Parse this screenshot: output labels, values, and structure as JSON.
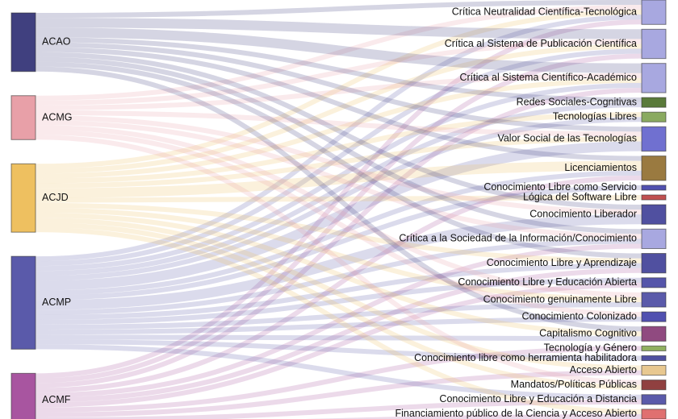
{
  "chart_data": {
    "type": "sankey",
    "nodes": [
      {
        "name": "ACAO",
        "color": "#40407f"
      },
      {
        "name": "ACMG",
        "color": "#e8a0a8"
      },
      {
        "name": "ACJD",
        "color": "#eec060"
      },
      {
        "name": "ACMP",
        "color": "#5a5aaa"
      },
      {
        "name": "ACMF",
        "color": "#a855a0"
      },
      {
        "name": "Crítica Neutralidad Científica-Tecnológica",
        "color": "#a8a8e0"
      },
      {
        "name": "Crítica al Sistema de Publicación Científica",
        "color": "#a8a8e0"
      },
      {
        "name": "Crítica al Sistema Científico-Académico",
        "color": "#a8a8e0"
      },
      {
        "name": "Redes Sociales-Cognitivas",
        "color": "#5a7a3a"
      },
      {
        "name": "Tecnologías Libres",
        "color": "#8aaa60"
      },
      {
        "name": "Valor Social de las Tecnologías",
        "color": "#7070d0"
      },
      {
        "name": "Licenciamientos",
        "color": "#9a7a40"
      },
      {
        "name": "Conocimiento Libre como Servicio",
        "color": "#5050b0"
      },
      {
        "name": "Lógica del Software Libre",
        "color": "#c05050"
      },
      {
        "name": "Conocimiento Liberador",
        "color": "#5050a0"
      },
      {
        "name": "Crítica a la Sociedad de la Información/Conocimiento",
        "color": "#a8a8e0"
      },
      {
        "name": "Conocimiento Libre y Aprendizaje",
        "color": "#5050a0"
      },
      {
        "name": "Conocimiento Libre y Educación Abierta",
        "color": "#5555aa"
      },
      {
        "name": "Conocimiento genuinamente Libre",
        "color": "#5a5aaa"
      },
      {
        "name": "Conocimiento Colonizado",
        "color": "#5050b0"
      },
      {
        "name": "Capitalismo Cognitivo",
        "color": "#904a80"
      },
      {
        "name": "Tecnología y Género",
        "color": "#90b060"
      },
      {
        "name": "Conocimiento libre como herramienta habilitadora",
        "color": "#5050a0"
      },
      {
        "name": "Acceso Abierto",
        "color": "#e8c890"
      },
      {
        "name": "Mandatos/Políticas Públicas",
        "color": "#904040"
      },
      {
        "name": "Conocimiento Libre y Educación a Distancia",
        "color": "#5a5aaa"
      },
      {
        "name": "Financiamiento público de la Ciencia y Acceso Abierto",
        "color": "#e07070"
      }
    ],
    "links": [
      {
        "source": 0,
        "target": 5,
        "value": 1
      },
      {
        "source": 1,
        "target": 5,
        "value": 1
      },
      {
        "source": 2,
        "target": 5,
        "value": 1
      },
      {
        "source": 3,
        "target": 5,
        "value": 1
      },
      {
        "source": 4,
        "target": 5,
        "value": 1
      },
      {
        "source": 0,
        "target": 6,
        "value": 2
      },
      {
        "source": 1,
        "target": 6,
        "value": 1
      },
      {
        "source": 2,
        "target": 6,
        "value": 1
      },
      {
        "source": 3,
        "target": 6,
        "value": 1
      },
      {
        "source": 4,
        "target": 6,
        "value": 1
      },
      {
        "source": 0,
        "target": 7,
        "value": 2
      },
      {
        "source": 1,
        "target": 7,
        "value": 1
      },
      {
        "source": 2,
        "target": 7,
        "value": 1
      },
      {
        "source": 3,
        "target": 7,
        "value": 1
      },
      {
        "source": 4,
        "target": 7,
        "value": 1
      },
      {
        "source": 0,
        "target": 8,
        "value": 1
      },
      {
        "source": 3,
        "target": 8,
        "value": 1
      },
      {
        "source": 2,
        "target": 9,
        "value": 1
      },
      {
        "source": 3,
        "target": 9,
        "value": 1
      },
      {
        "source": 0,
        "target": 10,
        "value": 1
      },
      {
        "source": 1,
        "target": 10,
        "value": 1
      },
      {
        "source": 2,
        "target": 10,
        "value": 1
      },
      {
        "source": 3,
        "target": 10,
        "value": 2
      },
      {
        "source": 0,
        "target": 11,
        "value": 1
      },
      {
        "source": 2,
        "target": 11,
        "value": 2
      },
      {
        "source": 3,
        "target": 11,
        "value": 1
      },
      {
        "source": 4,
        "target": 11,
        "value": 1
      },
      {
        "source": 3,
        "target": 12,
        "value": 1
      },
      {
        "source": 2,
        "target": 13,
        "value": 1
      },
      {
        "source": 0,
        "target": 14,
        "value": 1
      },
      {
        "source": 1,
        "target": 14,
        "value": 1
      },
      {
        "source": 3,
        "target": 14,
        "value": 2
      },
      {
        "source": 0,
        "target": 15,
        "value": 1
      },
      {
        "source": 1,
        "target": 15,
        "value": 1
      },
      {
        "source": 3,
        "target": 15,
        "value": 1
      },
      {
        "source": 4,
        "target": 15,
        "value": 1
      },
      {
        "source": 0,
        "target": 16,
        "value": 1
      },
      {
        "source": 2,
        "target": 16,
        "value": 1
      },
      {
        "source": 3,
        "target": 16,
        "value": 1
      },
      {
        "source": 4,
        "target": 16,
        "value": 1
      },
      {
        "source": 3,
        "target": 17,
        "value": 1
      },
      {
        "source": 4,
        "target": 17,
        "value": 1
      },
      {
        "source": 1,
        "target": 18,
        "value": 1
      },
      {
        "source": 2,
        "target": 18,
        "value": 1
      },
      {
        "source": 3,
        "target": 18,
        "value": 1
      },
      {
        "source": 1,
        "target": 19,
        "value": 1
      },
      {
        "source": 3,
        "target": 19,
        "value": 1
      },
      {
        "source": 0,
        "target": 20,
        "value": 1
      },
      {
        "source": 2,
        "target": 20,
        "value": 1
      },
      {
        "source": 3,
        "target": 20,
        "value": 1
      },
      {
        "source": 4,
        "target": 21,
        "value": 1
      },
      {
        "source": 3,
        "target": 22,
        "value": 1
      },
      {
        "source": 2,
        "target": 23,
        "value": 1
      },
      {
        "source": 4,
        "target": 23,
        "value": 1
      },
      {
        "source": 1,
        "target": 24,
        "value": 1
      },
      {
        "source": 2,
        "target": 24,
        "value": 1
      },
      {
        "source": 3,
        "target": 25,
        "value": 1
      },
      {
        "source": 4,
        "target": 25,
        "value": 1
      },
      {
        "source": 2,
        "target": 26,
        "value": 1
      },
      {
        "source": 4,
        "target": 26,
        "value": 1
      }
    ]
  }
}
